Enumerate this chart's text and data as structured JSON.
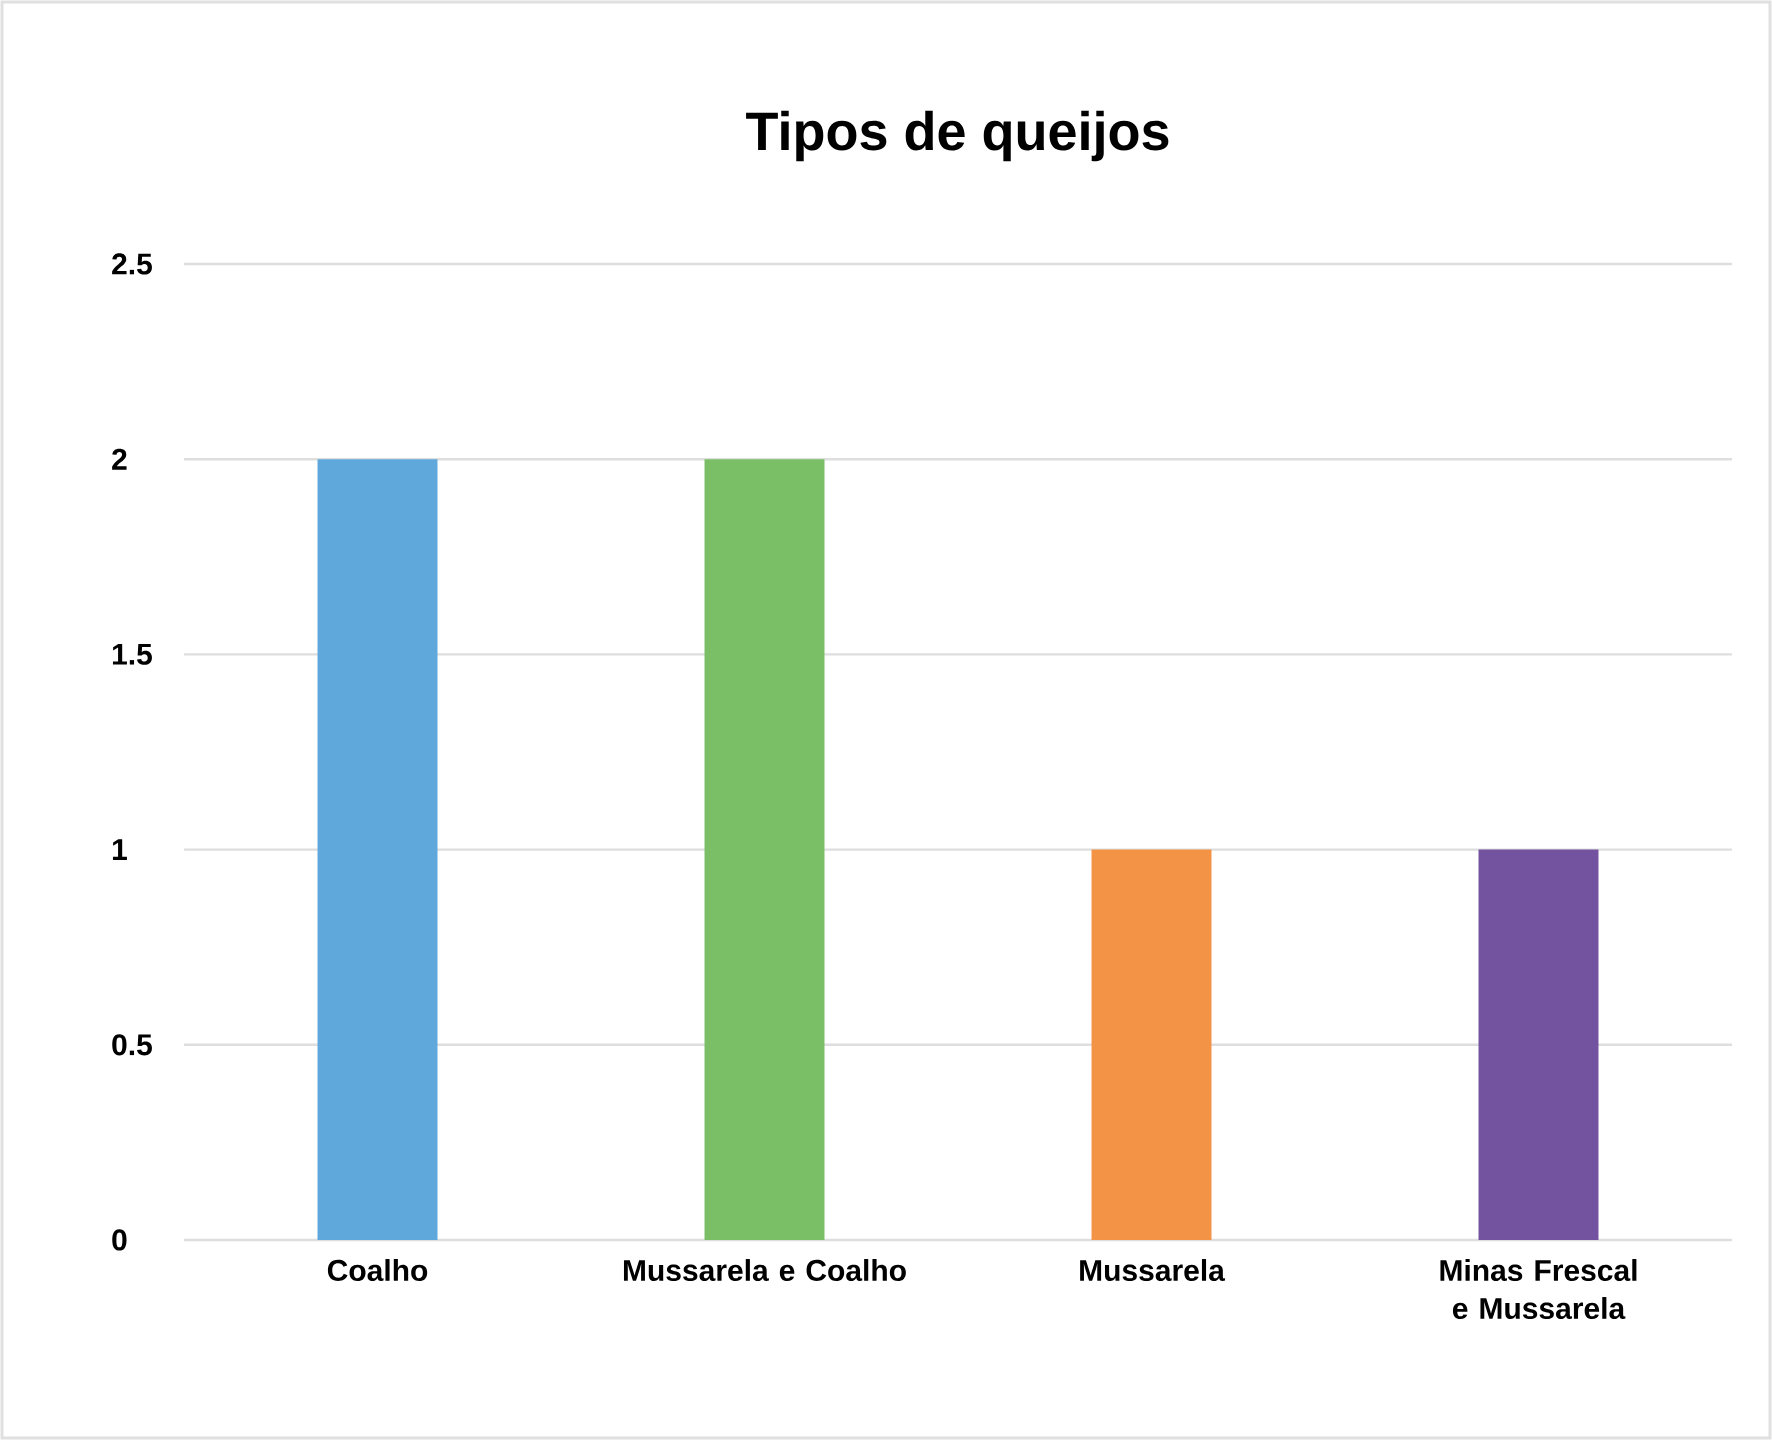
{
  "chart_data": {
    "type": "bar",
    "title": "Tipos de queijos",
    "categories": [
      "Coalho",
      "Mussarela e Coalho",
      "Mussarela",
      "Minas Frescal e Mussarela"
    ],
    "values": [
      2,
      2,
      1,
      1
    ],
    "colors": [
      "#5fa8dc",
      "#7abf66",
      "#f39346",
      "#7352a0"
    ],
    "ylim": [
      0,
      2.5
    ],
    "yticks": [
      0,
      0.5,
      1,
      1.5,
      2,
      2.5
    ],
    "grid": "y"
  }
}
